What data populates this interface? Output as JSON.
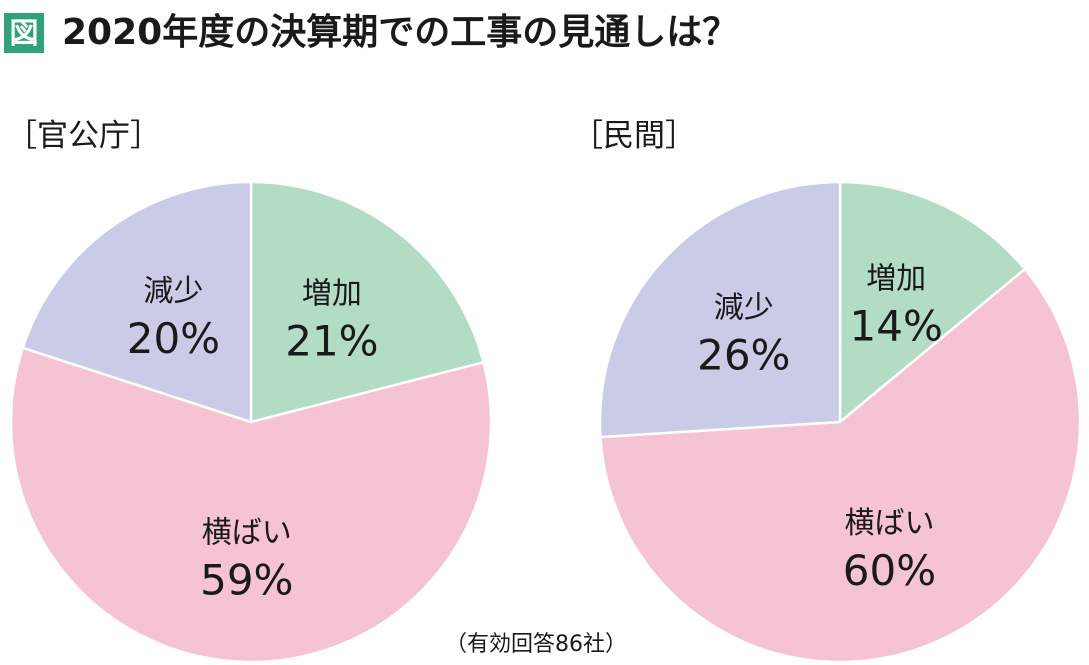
{
  "figure": {
    "badge": "図",
    "title": "2020年度の決算期での工事の見通しは？",
    "note": "（有効回答86社）"
  },
  "colors": {
    "increase": "#b3dcc5",
    "flat": "#f6c3d4",
    "decrease": "#cacbe6",
    "badge": "#2ea37a"
  },
  "chart_data": [
    {
      "type": "pie",
      "title": "［官公庁］",
      "slices": [
        {
          "label": "増加",
          "value": 21,
          "value_label": "21%",
          "color": "#b3dcc5"
        },
        {
          "label": "横ばい",
          "value": 59,
          "value_label": "59%",
          "color": "#f6c3d4"
        },
        {
          "label": "減少",
          "value": 20,
          "value_label": "20%",
          "color": "#cacbe6"
        }
      ]
    },
    {
      "type": "pie",
      "title": "［民間］",
      "slices": [
        {
          "label": "増加",
          "value": 14,
          "value_label": "14%",
          "color": "#b3dcc5"
        },
        {
          "label": "横ばい",
          "value": 60,
          "value_label": "60%",
          "color": "#f6c3d4"
        },
        {
          "label": "減少",
          "value": 26,
          "value_label": "26%",
          "color": "#cacbe6"
        }
      ]
    }
  ]
}
